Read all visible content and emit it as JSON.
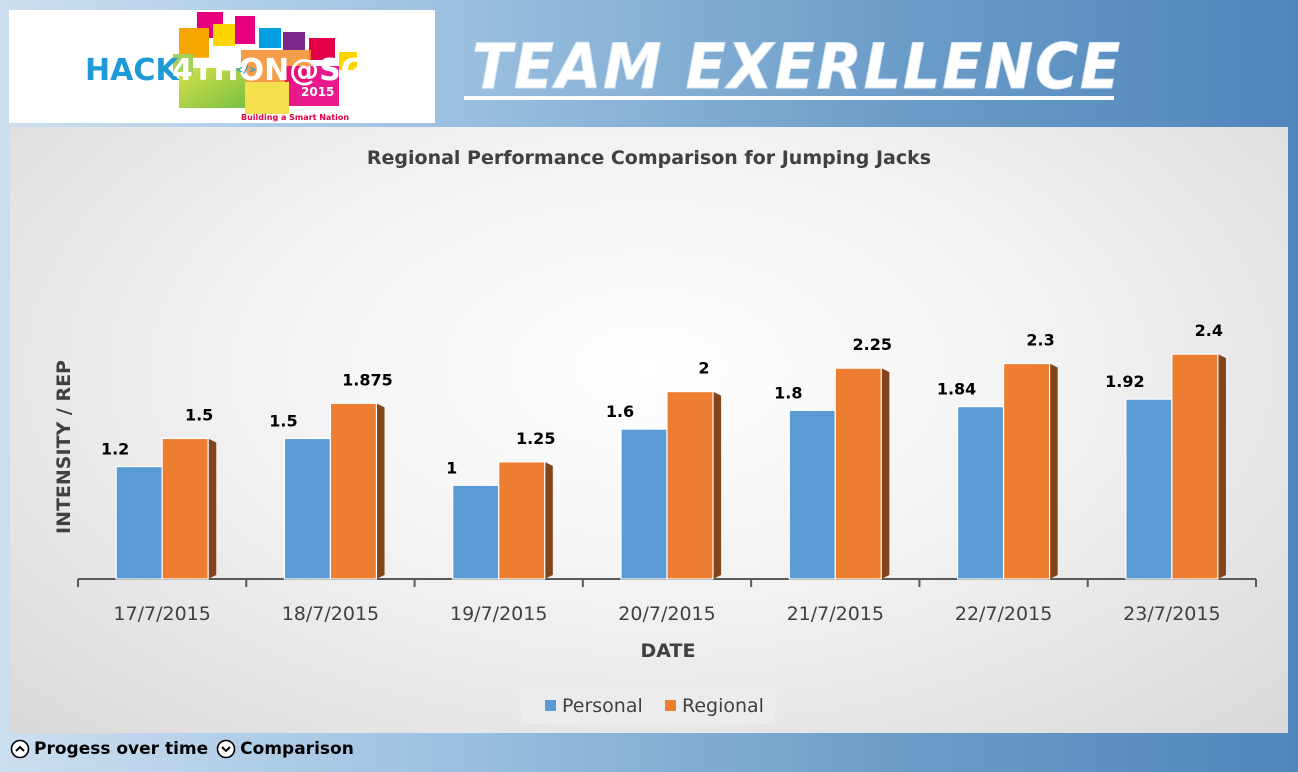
{
  "logo": {
    "text_left": "HACK",
    "text_4": "4",
    "text_right": "THON@SG",
    "code_symbol": "</>",
    "year": "2015",
    "tagline": "Building a Smart Nation"
  },
  "header": {
    "title": "TEAM EXERLLENCE"
  },
  "chart_data": {
    "type": "bar",
    "title": "Regional Performance Comparison for Jumping Jacks",
    "xlabel": "DATE",
    "ylabel": "INTENSITY / REP",
    "categories": [
      "17/7/2015",
      "18/7/2015",
      "19/7/2015",
      "20/7/2015",
      "21/7/2015",
      "22/7/2015",
      "23/7/2015"
    ],
    "series": [
      {
        "name": "Personal",
        "values": [
          1.2,
          1.5,
          1,
          1.6,
          1.8,
          1.84,
          1.92
        ],
        "color": "#5b9bd5"
      },
      {
        "name": "Regional",
        "values": [
          1.5,
          1.875,
          1.25,
          2,
          2.25,
          2.3,
          2.4
        ],
        "color": "#ed7d31"
      }
    ],
    "data_labels": true,
    "legend": "bottom",
    "grid": false
  },
  "footer": {
    "nav_up_label": "Progess over time",
    "nav_down_label": "Comparison",
    "up_icon": "chevron-up-circle-icon",
    "down_icon": "chevron-down-circle-icon"
  }
}
